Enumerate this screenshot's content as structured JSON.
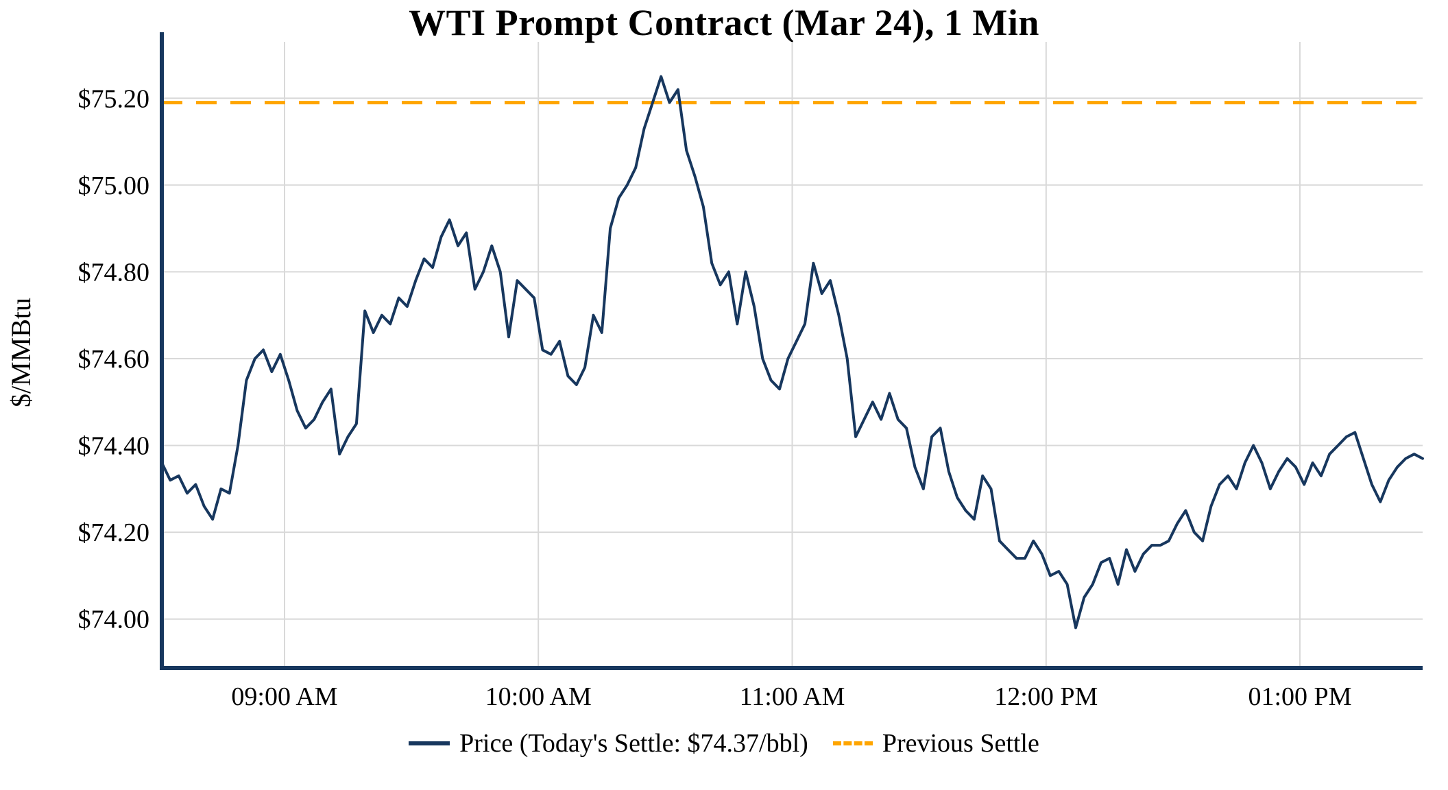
{
  "chart_data": {
    "type": "line",
    "title": "WTI Prompt Contract (Mar 24), 1 Min",
    "xlabel": "",
    "ylabel": "$/MMBtu",
    "grid": true,
    "legend_position": "bottom",
    "axis_color": "#17375E",
    "grid_color": "#D9D9D9",
    "ylim": [
      73.9,
      75.33
    ],
    "x_range_min": [
      511,
      809
    ],
    "x_ticks": [
      {
        "min": 540,
        "label": "09:00 AM"
      },
      {
        "min": 600,
        "label": "10:00 AM"
      },
      {
        "min": 660,
        "label": "11:00 AM"
      },
      {
        "min": 720,
        "label": "12:00 PM"
      },
      {
        "min": 780,
        "label": "01:00 PM"
      }
    ],
    "y_ticks": [
      {
        "value": 74.0,
        "label": "$74.00"
      },
      {
        "value": 74.2,
        "label": "$74.20"
      },
      {
        "value": 74.4,
        "label": "$74.40"
      },
      {
        "value": 74.6,
        "label": "$74.60"
      },
      {
        "value": 74.8,
        "label": "$74.80"
      },
      {
        "value": 75.0,
        "label": "$75.00"
      },
      {
        "value": 75.2,
        "label": "$75.20"
      }
    ],
    "series": [
      {
        "name": "Price (Today's Settle: $74.37/bbl)",
        "color": "#17375E",
        "x_start_min": 511,
        "x_step_min": 2,
        "values": [
          74.36,
          74.32,
          74.33,
          74.29,
          74.31,
          74.26,
          74.23,
          74.3,
          74.29,
          74.4,
          74.55,
          74.6,
          74.62,
          74.57,
          74.61,
          74.55,
          74.48,
          74.44,
          74.46,
          74.5,
          74.53,
          74.38,
          74.42,
          74.45,
          74.71,
          74.66,
          74.7,
          74.68,
          74.74,
          74.72,
          74.78,
          74.83,
          74.81,
          74.88,
          74.92,
          74.86,
          74.89,
          74.76,
          74.8,
          74.86,
          74.8,
          74.65,
          74.78,
          74.76,
          74.74,
          74.62,
          74.61,
          74.64,
          74.56,
          74.54,
          74.58,
          74.7,
          74.66,
          74.9,
          74.97,
          75.0,
          75.04,
          75.13,
          75.19,
          75.25,
          75.19,
          75.22,
          75.08,
          75.02,
          74.95,
          74.82,
          74.77,
          74.8,
          74.68,
          74.8,
          74.72,
          74.6,
          74.55,
          74.53,
          74.6,
          74.64,
          74.68,
          74.82,
          74.75,
          74.78,
          74.7,
          74.6,
          74.42,
          74.46,
          74.5,
          74.46,
          74.52,
          74.46,
          74.44,
          74.35,
          74.3,
          74.42,
          74.44,
          74.34,
          74.28,
          74.25,
          74.23,
          74.33,
          74.3,
          74.18,
          74.16,
          74.14,
          74.14,
          74.18,
          74.15,
          74.1,
          74.11,
          74.08,
          73.98,
          74.05,
          74.08,
          74.13,
          74.14,
          74.08,
          74.16,
          74.11,
          74.15,
          74.17,
          74.17,
          74.18,
          74.22,
          74.25,
          74.2,
          74.18,
          74.26,
          74.31,
          74.33,
          74.3,
          74.36,
          74.4,
          74.36,
          74.3,
          74.34,
          74.37,
          74.35,
          74.31,
          74.36,
          74.33,
          74.38,
          74.4,
          74.42,
          74.43,
          74.37,
          74.31,
          74.27,
          74.32,
          74.35,
          74.37,
          74.38,
          74.37
        ]
      }
    ],
    "previous_settle": {
      "label": "Previous Settle",
      "value": 75.19,
      "color": "#FFA500",
      "style": "dashed"
    },
    "today_settle_text": "$74.37/bbl"
  }
}
